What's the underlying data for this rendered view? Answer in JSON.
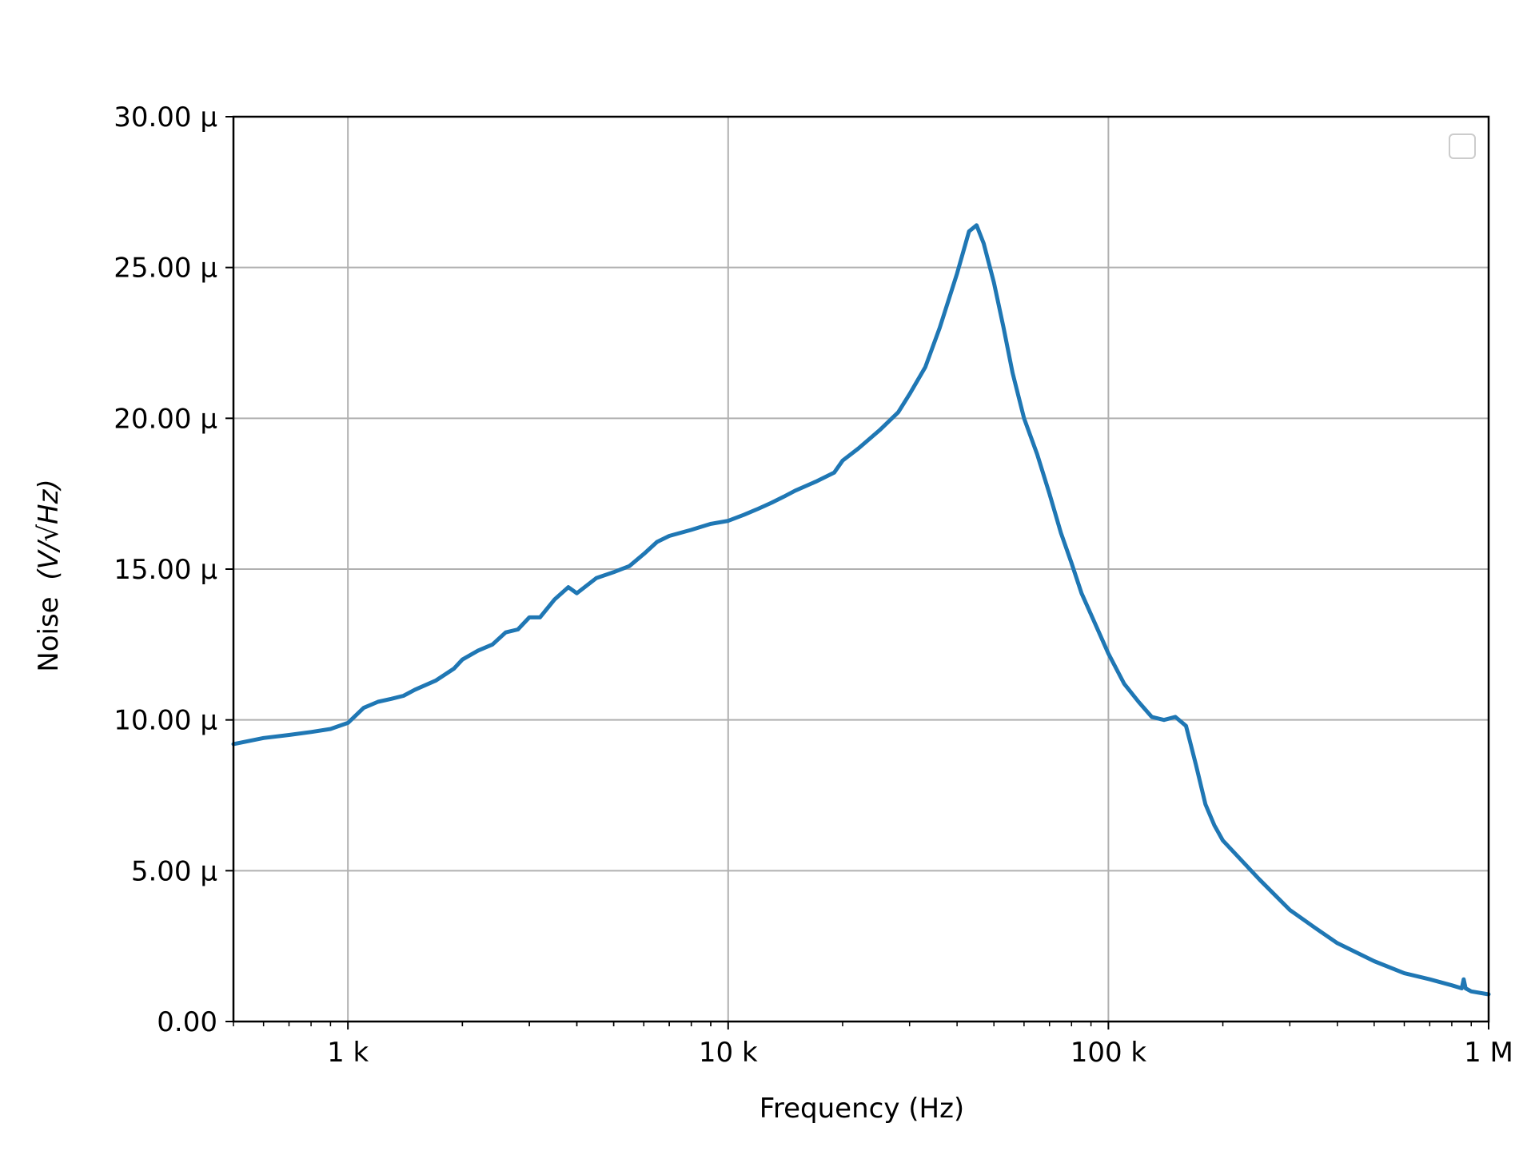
{
  "chart_data": {
    "type": "line",
    "xlabel": "Frequency (Hz)",
    "ylabel": "Noise",
    "ylabel_unit": "(V/√Hz)",
    "xscale": "log",
    "xlim": [
      500,
      1000000
    ],
    "ylim": [
      0,
      3e-05
    ],
    "grid": true,
    "legend": "top-right (empty)",
    "x_ticks": [
      {
        "value": 1000,
        "label": "1 k"
      },
      {
        "value": 10000,
        "label": "10 k"
      },
      {
        "value": 100000,
        "label": "100 k"
      },
      {
        "value": 1000000,
        "label": "1 M"
      }
    ],
    "y_ticks": [
      {
        "value": 0,
        "label": "0.00"
      },
      {
        "value": 5e-06,
        "label": "5.00 µ"
      },
      {
        "value": 1e-05,
        "label": "10.00 µ"
      },
      {
        "value": 1.5e-05,
        "label": "15.00 µ"
      },
      {
        "value": 2e-05,
        "label": "20.00 µ"
      },
      {
        "value": 2.5e-05,
        "label": "25.00 µ"
      },
      {
        "value": 3e-05,
        "label": "30.00 µ"
      }
    ],
    "series": [
      {
        "color": "#1f77b4",
        "x": [
          500,
          600,
          700,
          800,
          900,
          1000,
          1100,
          1200,
          1300,
          1400,
          1500,
          1700,
          1900,
          2000,
          2200,
          2400,
          2600,
          2800,
          3000,
          3200,
          3500,
          3800,
          4000,
          4500,
          5000,
          5500,
          6000,
          6500,
          7000,
          8000,
          9000,
          10000,
          11000,
          12000,
          13000,
          14000,
          15000,
          17000,
          19000,
          20000,
          22000,
          25000,
          28000,
          30000,
          33000,
          36000,
          40000,
          43000,
          45000,
          47000,
          50000,
          53000,
          56000,
          60000,
          65000,
          70000,
          75000,
          80000,
          85000,
          90000,
          100000,
          110000,
          120000,
          130000,
          140000,
          150000,
          160000,
          170000,
          180000,
          190000,
          200000,
          250000,
          300000,
          350000,
          400000,
          500000,
          600000,
          700000,
          800000,
          850000,
          860000,
          870000,
          900000,
          1000000
        ],
        "y": [
          9.2e-06,
          9.4e-06,
          9.5e-06,
          9.6e-06,
          9.7e-06,
          9.9e-06,
          1.04e-05,
          1.06e-05,
          1.07e-05,
          1.08e-05,
          1.1e-05,
          1.13e-05,
          1.17e-05,
          1.2e-05,
          1.23e-05,
          1.25e-05,
          1.29e-05,
          1.3e-05,
          1.34e-05,
          1.34e-05,
          1.4e-05,
          1.44e-05,
          1.42e-05,
          1.47e-05,
          1.49e-05,
          1.51e-05,
          1.55e-05,
          1.59e-05,
          1.61e-05,
          1.63e-05,
          1.65e-05,
          1.66e-05,
          1.68e-05,
          1.7e-05,
          1.72e-05,
          1.74e-05,
          1.76e-05,
          1.79e-05,
          1.82e-05,
          1.86e-05,
          1.9e-05,
          1.96e-05,
          2.02e-05,
          2.08e-05,
          2.17e-05,
          2.3e-05,
          2.48e-05,
          2.62e-05,
          2.64e-05,
          2.58e-05,
          2.45e-05,
          2.3e-05,
          2.15e-05,
          2e-05,
          1.88e-05,
          1.75e-05,
          1.62e-05,
          1.52e-05,
          1.42e-05,
          1.35e-05,
          1.22e-05,
          1.12e-05,
          1.06e-05,
          1.01e-05,
          1e-05,
          1.01e-05,
          9.8e-06,
          8.5e-06,
          7.2e-06,
          6.5e-06,
          6e-06,
          4.7e-06,
          3.7e-06,
          3.1e-06,
          2.6e-06,
          2e-06,
          1.6e-06,
          1.4e-06,
          1.2e-06,
          1.1e-06,
          1.4e-06,
          1.1e-06,
          1e-06,
          9e-07
        ]
      }
    ]
  }
}
